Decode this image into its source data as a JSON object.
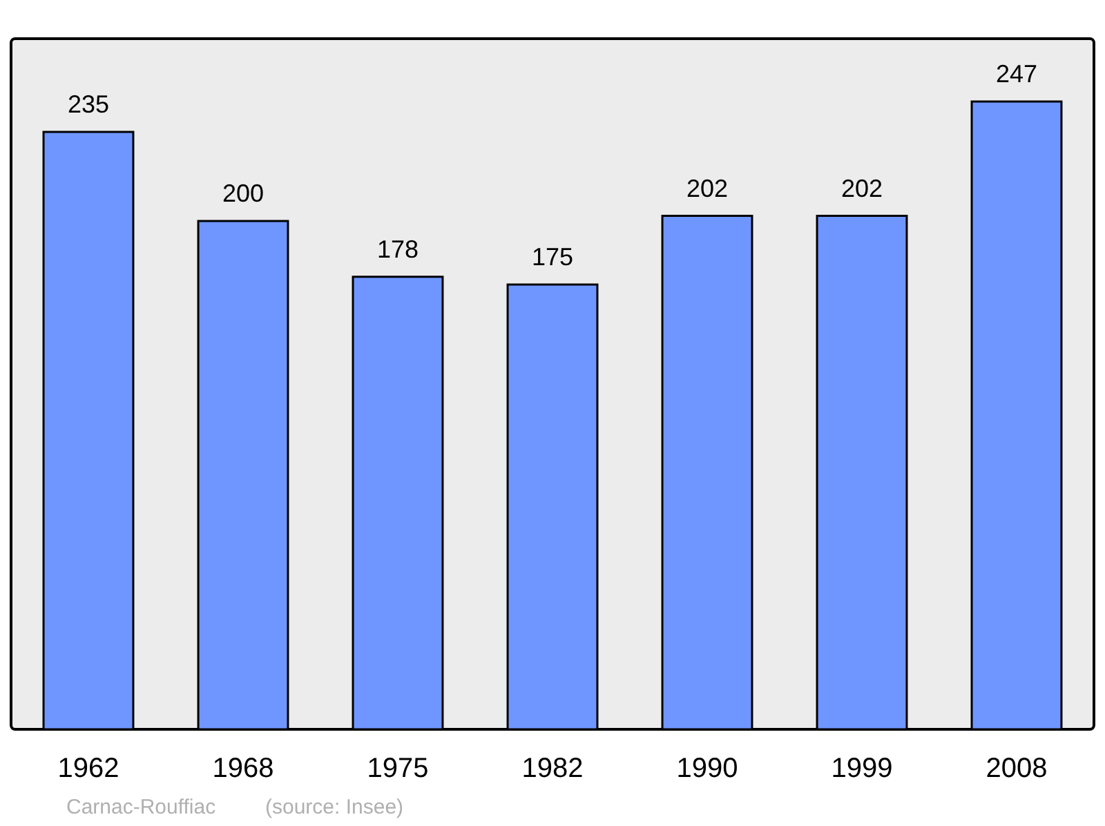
{
  "chart_data": {
    "type": "bar",
    "categories": [
      "1962",
      "1968",
      "1975",
      "1982",
      "1990",
      "1999",
      "2008"
    ],
    "values": [
      235,
      200,
      178,
      175,
      202,
      202,
      247
    ],
    "color": "#6f96ff",
    "data_labels": true,
    "grid": false,
    "tick_labels": "x",
    "annotations": [
      "Carnac-Rouffiac",
      "(source: Insee)"
    ]
  }
}
